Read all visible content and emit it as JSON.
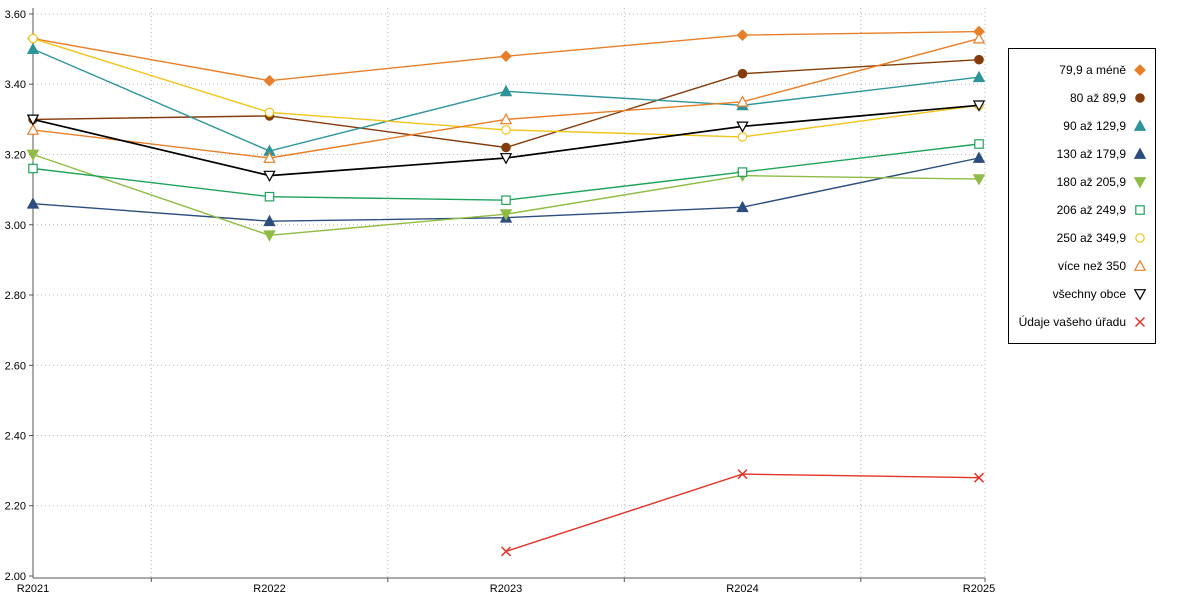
{
  "chart_data": {
    "type": "line",
    "title": "",
    "xlabel": "",
    "ylabel": "",
    "categories": [
      "R2021",
      "R2022",
      "R2023",
      "R2024",
      "R2025"
    ],
    "ylim": [
      2.0,
      3.6
    ],
    "ytick_step": 0.2,
    "ytick_labels": [
      "2.00",
      "2.20",
      "2.40",
      "2.60",
      "2.80",
      "3.00",
      "3.20",
      "3.40",
      "3.60"
    ],
    "grid": "dotted horizontal at each y tick, dotted vertical at category boundaries",
    "legend_position": "right",
    "series": [
      {
        "name": "79,9 a méně",
        "color": "#e87e28",
        "marker": "diamond",
        "filled": true,
        "values": [
          3.53,
          3.41,
          3.48,
          3.54,
          3.55
        ]
      },
      {
        "name": "80 až 89,9",
        "color": "#843c0c",
        "marker": "circle",
        "filled": true,
        "values": [
          3.3,
          3.31,
          3.22,
          3.43,
          3.47
        ]
      },
      {
        "name": "90 až 129,9",
        "color": "#2d9599",
        "marker": "triangle",
        "filled": true,
        "values": [
          3.5,
          3.21,
          3.38,
          3.34,
          3.42
        ]
      },
      {
        "name": "130 až 179,9",
        "color": "#2c4d7e",
        "marker": "triangle",
        "filled": true,
        "values": [
          3.06,
          3.01,
          3.02,
          3.05,
          3.19
        ]
      },
      {
        "name": "180 až 205,9",
        "color": "#8fbc45",
        "marker": "triangle-down",
        "filled": true,
        "values": [
          3.2,
          2.97,
          3.03,
          3.14,
          3.13
        ]
      },
      {
        "name": "206 až 249,9",
        "color": "#1ea35b",
        "marker": "square",
        "filled": false,
        "values": [
          3.16,
          3.08,
          3.07,
          3.15,
          3.23
        ]
      },
      {
        "name": "250 až 349,9",
        "color": "#f0c419",
        "marker": "circle",
        "filled": false,
        "values": [
          3.53,
          3.32,
          3.27,
          3.25,
          3.34
        ]
      },
      {
        "name": "více než 350",
        "color": "#e87e28",
        "marker": "triangle",
        "filled": false,
        "values": [
          3.27,
          3.19,
          3.3,
          3.35,
          3.53
        ]
      },
      {
        "name": "všechny obce",
        "color": "#000000",
        "marker": "triangle-down",
        "filled": false,
        "values": [
          3.3,
          3.14,
          3.19,
          3.28,
          3.34
        ]
      },
      {
        "name": "Údaje vašeho úřadu",
        "color": "#e53228",
        "marker": "x",
        "filled": false,
        "values": [
          null,
          null,
          2.07,
          2.29,
          2.28
        ]
      }
    ]
  },
  "colors": {
    "background": "#ffffff",
    "grid": "#b5b5b5",
    "axis": "#555555",
    "legend_border": "#000000"
  }
}
